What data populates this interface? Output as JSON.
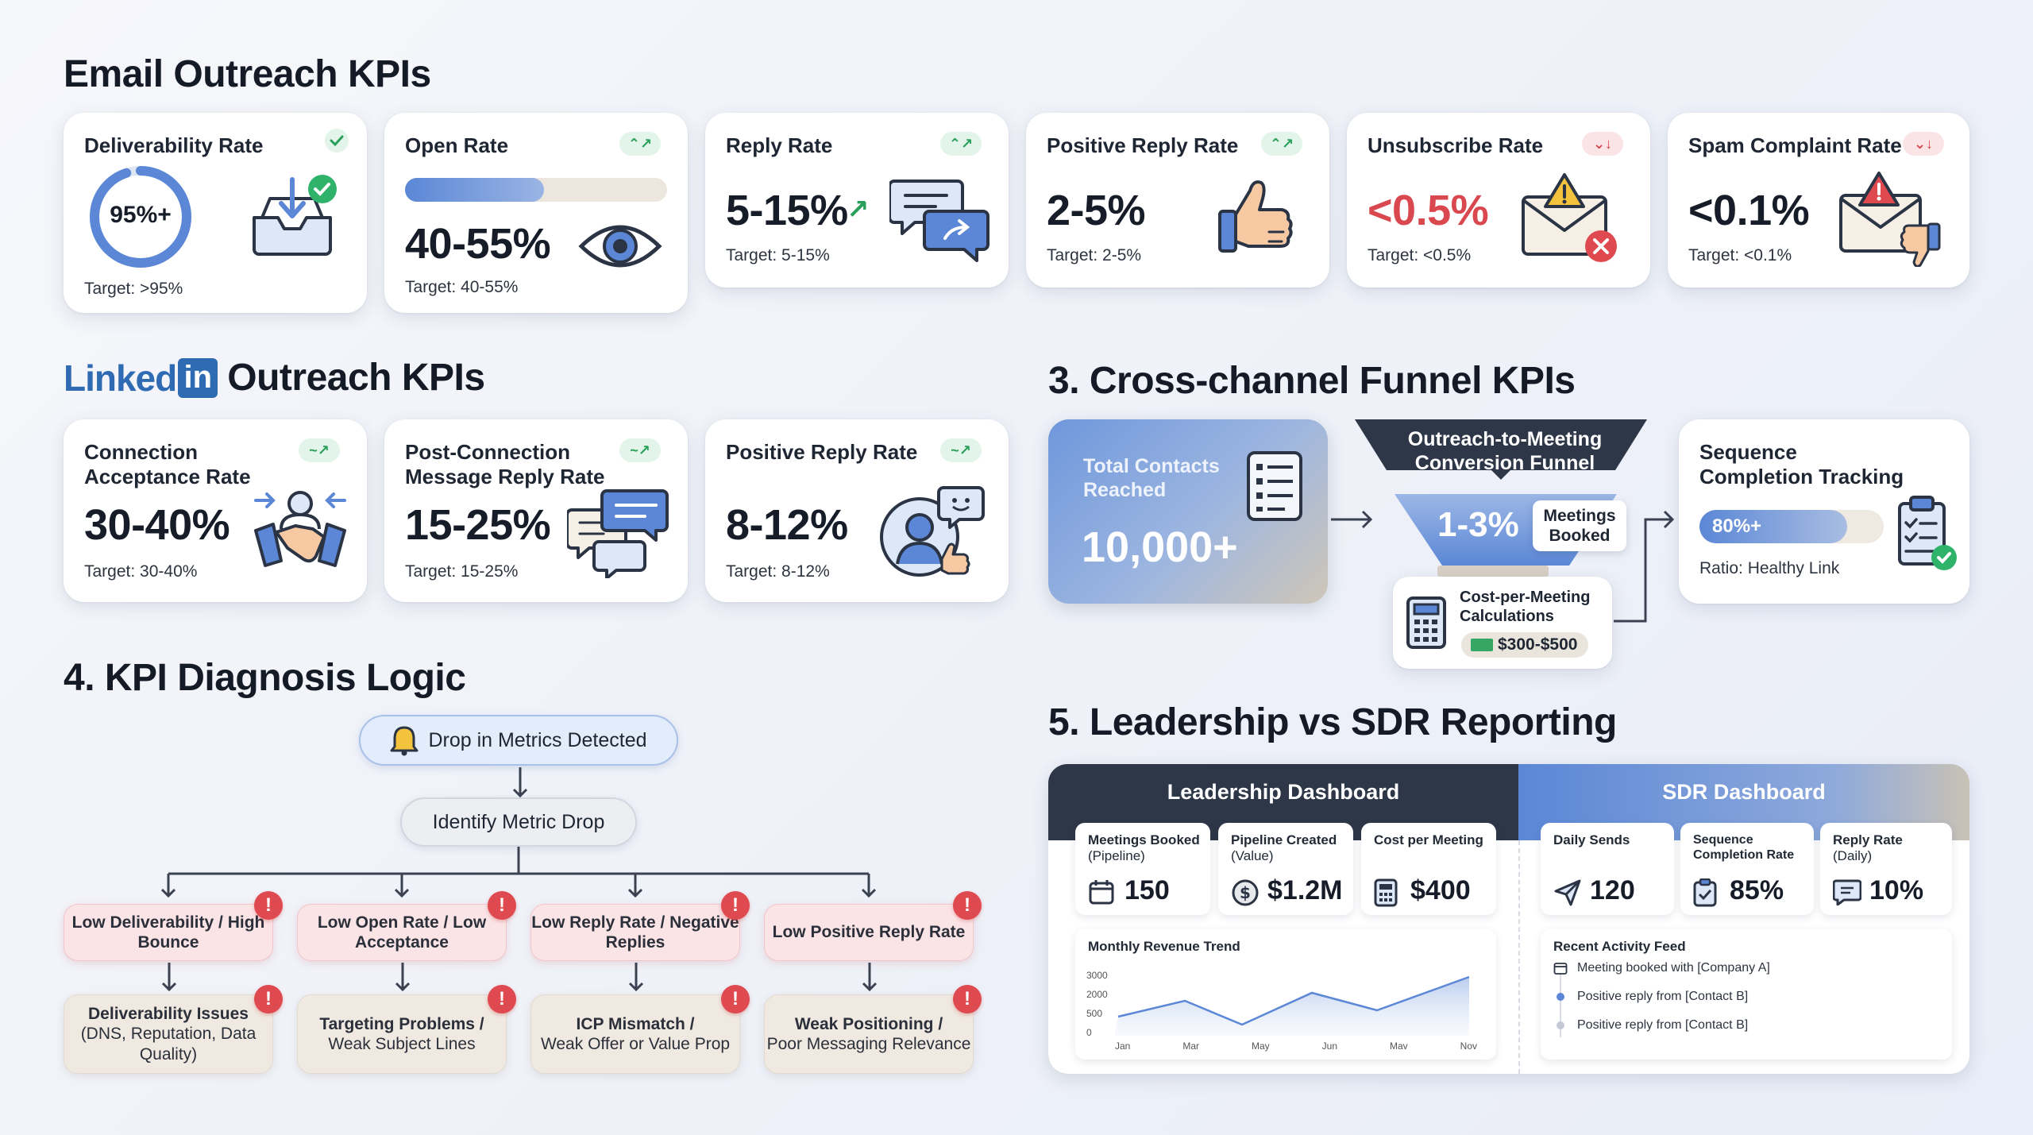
{
  "email_section": {
    "title": "Email Outreach KPIs"
  },
  "email_cards": [
    {
      "title": "Deliverability Rate",
      "value": "95%+",
      "target": "Target: >95%",
      "trend": "check"
    },
    {
      "title": "Open Rate",
      "value": "40-55%",
      "target": "Target: 40-55%",
      "trend": "up",
      "progress": 0.53
    },
    {
      "title": "Reply Rate",
      "value": "5-15%",
      "target": "Target: 5-15%",
      "trend": "up"
    },
    {
      "title": "Positive Reply Rate",
      "value": "2-5%",
      "target": "Target: 2-5%",
      "trend": "up"
    },
    {
      "title": "Unsubscribe Rate",
      "value": "<0.5%",
      "target": "Target: <0.5%",
      "trend": "down"
    },
    {
      "title": "Spam Complaint Rate",
      "value": "<0.1%",
      "target": "Target: <0.1%",
      "trend": "down"
    }
  ],
  "linkedin_section": {
    "logo_text": "Linked",
    "logo_in": "in",
    "title": "Outreach KPIs"
  },
  "linkedin_cards": [
    {
      "title_line1": "Connection",
      "title_line2": "Acceptance Rate",
      "value": "30-40%",
      "target": "Target: 30-40%",
      "trend": "up"
    },
    {
      "title_line1": "Post-Connection",
      "title_line2": "Message Reply Rate",
      "value": "15-25%",
      "target": "Target: 15-25%",
      "trend": "up"
    },
    {
      "title_line1": "Positive Reply Rate",
      "title_line2": "",
      "value": "8-12%",
      "target": "Target: 8-12%",
      "trend": "up"
    }
  ],
  "funnel_section": {
    "title": "3. Cross-channel Funnel KPIs",
    "contacts_label": "Total Contacts Reached",
    "contacts_value": "10,000+",
    "funnel_title": "Outreach-to-Meeting Conversion Funnel",
    "funnel_value": "1-3%",
    "meetings_label": "Meetings Booked",
    "cost_label": "Cost-per-Meeting Calculations",
    "cost_value": "$300-$500",
    "sequence_title": "Sequence Completion Tracking",
    "sequence_value": "80%+",
    "sequence_progress": 0.8,
    "sequence_ratio": "Ratio: Healthy Link"
  },
  "diagnosis_section": {
    "title": "4. KPI Diagnosis Logic",
    "alert": "Drop in Metrics Detected",
    "identify": "Identify Metric Drop",
    "branches": [
      {
        "symptom": "Low Deliverability / High Bounce",
        "cause_bold": "Deliverability Issues",
        "cause_rest": "(DNS, Reputation, Data Quality)"
      },
      {
        "symptom": "Low Open Rate / Low Acceptance",
        "cause_bold": "Targeting Problems /",
        "cause_rest": "Weak Subject Lines"
      },
      {
        "symptom": "Low Reply Rate / Negative Replies",
        "cause_bold": "ICP Mismatch /",
        "cause_rest": "Weak Offer or Value Prop"
      },
      {
        "symptom": "Low Positive Reply Rate",
        "cause_bold": "Weak Positioning /",
        "cause_rest": "Poor Messaging Relevance"
      }
    ]
  },
  "reporting_section": {
    "title": "5. Leadership vs SDR Reporting",
    "leadership": {
      "header": "Leadership Dashboard",
      "metrics": [
        {
          "label": "Meetings Booked",
          "sub": "(Pipeline)",
          "value": "150",
          "icon": "calendar-icon"
        },
        {
          "label": "Pipeline Created",
          "sub": "(Value)",
          "value": "$1.2M",
          "icon": "dollar-icon"
        },
        {
          "label": "Cost per Meeting",
          "sub": "",
          "value": "$400",
          "icon": "calculator-icon"
        }
      ],
      "trend_title": "Monthly Revenue Trend",
      "trend_yticks": [
        "3000",
        "2000",
        "500",
        "0"
      ],
      "trend_xticks": [
        "Jan",
        "Mar",
        "May",
        "Jun",
        "Mav",
        "Nov"
      ]
    },
    "sdr": {
      "header": "SDR Dashboard",
      "metrics": [
        {
          "label": "Daily Sends",
          "sub": "",
          "value": "120",
          "icon": "send-icon"
        },
        {
          "label": "Sequence Completion Rate",
          "sub": "",
          "value": "85%",
          "icon": "clipboard-icon"
        },
        {
          "label": "Reply Rate",
          "sub": "(Daily)",
          "value": "10%",
          "icon": "chat-icon"
        }
      ],
      "feed_title": "Recent Activity Feed",
      "feed": [
        "Meeting booked with [Company A]",
        "Positive reply from [Contact B]",
        "Positive reply from [Contact B]"
      ]
    }
  },
  "colors": {
    "accent_blue": "#5b87d6",
    "up_green": "#28a05a",
    "down_red": "#d6454c",
    "dark_navy": "#2b3444"
  }
}
